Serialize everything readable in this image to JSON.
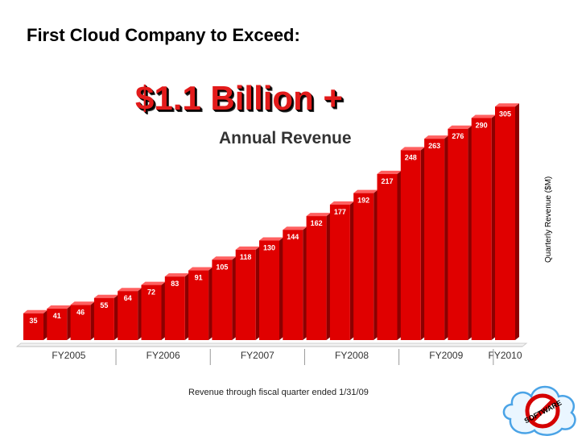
{
  "slide": {
    "title": "First Cloud Company to Exceed:",
    "headline": "$1.1 Billion +",
    "subheadline": "Annual Revenue",
    "footnote": "Revenue through fiscal quarter ended 1/31/09"
  },
  "logo": {
    "text": "SOFTWARE",
    "icon": "no-software-icon"
  },
  "colors": {
    "accent": "#e31b1b",
    "bar": "#e00000",
    "bar_dark": "#8c0000",
    "bar_top": "#ff6060"
  },
  "chart_data": {
    "type": "bar",
    "title": "",
    "xlabel": "",
    "ylabel": "Quarterly Revenue ($M)",
    "ylim": [
      0,
      320
    ],
    "values": [
      35,
      41,
      46,
      55,
      64,
      72,
      83,
      91,
      105,
      118,
      130,
      144,
      162,
      177,
      192,
      217,
      248,
      263,
      276,
      290,
      305
    ],
    "fiscal_years": [
      {
        "label": "FY2005",
        "start": 0,
        "count": 4
      },
      {
        "label": "FY2006",
        "start": 4,
        "count": 4
      },
      {
        "label": "FY2007",
        "start": 8,
        "count": 4
      },
      {
        "label": "FY2008",
        "start": 12,
        "count": 4
      },
      {
        "label": "FY2009",
        "start": 16,
        "count": 4
      },
      {
        "label": "FY2010",
        "start": 20,
        "count": 1
      }
    ],
    "grid": false,
    "legend": "none"
  }
}
